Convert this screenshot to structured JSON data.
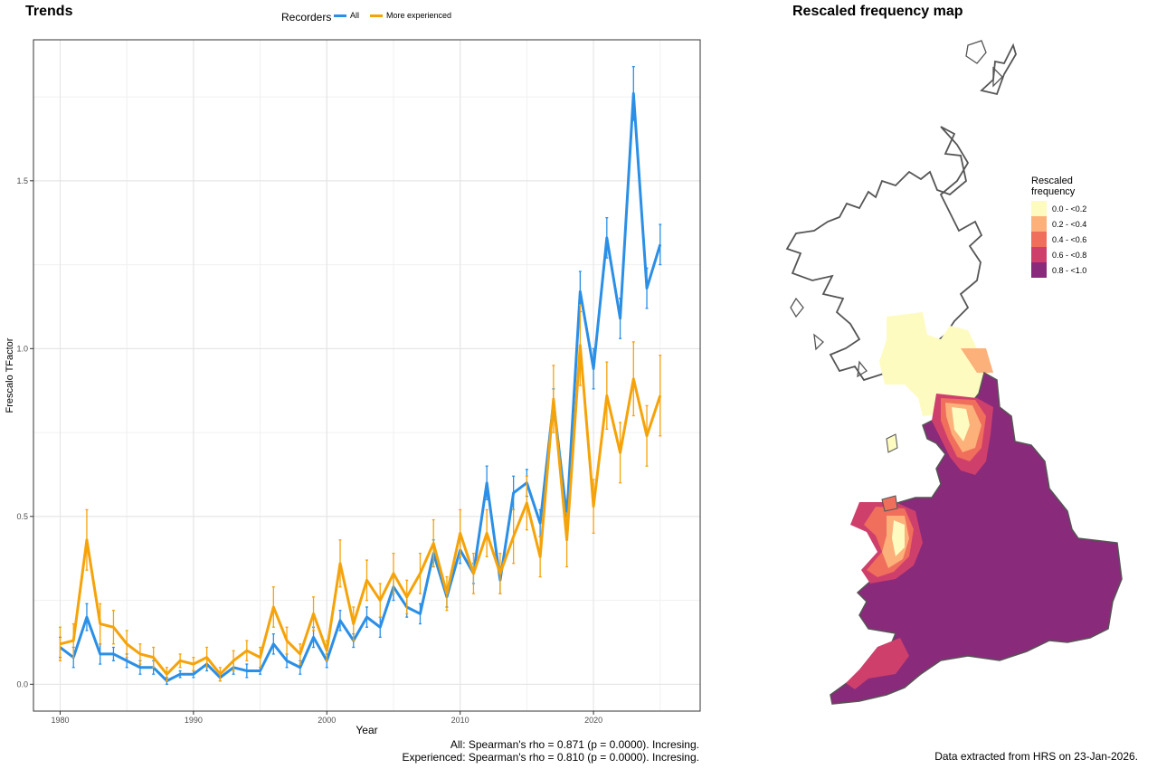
{
  "trends": {
    "title": "Trends",
    "legend_title": "Recorders",
    "stat_all": "All: Spearman's rho = 0.871 (p = 0.0000). Incresing.",
    "stat_experienced": "Experienced: Spearman's rho = 0.810 (p = 0.0000). Incresing."
  },
  "map": {
    "title": "Rescaled frequency map",
    "legend_title_line1": "Rescaled",
    "legend_title_line2": "frequency",
    "legend": [
      {
        "label": "0.0 - <0.2",
        "color": "#fdfbc0"
      },
      {
        "label": "0.2 - <0.4",
        "color": "#fcb07a"
      },
      {
        "label": "0.4 - <0.6",
        "color": "#f06e5c"
      },
      {
        "label": "0.6 - <0.8",
        "color": "#cf3f6c"
      },
      {
        "label": "0.8 - <1.0",
        "color": "#8a2a7a"
      }
    ],
    "note": "Data extracted from HRS on 23-Jan-2026."
  },
  "chart_data": {
    "type": "line",
    "title": "Trends",
    "xlabel": "Year",
    "ylabel": "Frescalo TFactor",
    "xlim": [
      1978,
      2028
    ],
    "ylim": [
      -0.08,
      1.92
    ],
    "x_ticks": [
      1980,
      1990,
      2000,
      2010,
      2020
    ],
    "y_ticks": [
      0.0,
      0.5,
      1.0,
      1.5
    ],
    "y_tick_labels": [
      "0.0",
      "0.5",
      "1.0",
      "1.5"
    ],
    "grid": true,
    "legend_position": "top",
    "x": [
      1980,
      1981,
      1982,
      1983,
      1984,
      1985,
      1986,
      1987,
      1988,
      1989,
      1990,
      1991,
      1992,
      1993,
      1994,
      1995,
      1996,
      1997,
      1998,
      1999,
      2000,
      2001,
      2002,
      2003,
      2004,
      2005,
      2006,
      2007,
      2008,
      2009,
      2010,
      2011,
      2012,
      2013,
      2014,
      2015,
      2016,
      2017,
      2018,
      2019,
      2020,
      2021,
      2022,
      2023,
      2024,
      2025
    ],
    "series": [
      {
        "name": "All",
        "color": "#2b8fe6",
        "values": [
          0.11,
          0.08,
          0.2,
          0.09,
          0.09,
          0.07,
          0.05,
          0.05,
          0.01,
          0.03,
          0.03,
          0.06,
          0.02,
          0.05,
          0.04,
          0.04,
          0.12,
          0.07,
          0.05,
          0.14,
          0.07,
          0.19,
          0.13,
          0.2,
          0.17,
          0.29,
          0.23,
          0.21,
          0.39,
          0.26,
          0.4,
          0.33,
          0.6,
          0.31,
          0.57,
          0.6,
          0.48,
          0.84,
          0.5,
          1.17,
          0.94,
          1.33,
          1.09,
          1.76,
          1.18,
          1.31
        ],
        "err": [
          0.03,
          0.03,
          0.04,
          0.03,
          0.02,
          0.02,
          0.02,
          0.02,
          0.01,
          0.01,
          0.01,
          0.02,
          0.01,
          0.02,
          0.02,
          0.01,
          0.03,
          0.02,
          0.02,
          0.03,
          0.02,
          0.03,
          0.02,
          0.03,
          0.03,
          0.04,
          0.03,
          0.03,
          0.04,
          0.03,
          0.04,
          0.03,
          0.05,
          0.04,
          0.05,
          0.04,
          0.04,
          0.04,
          0.04,
          0.06,
          0.06,
          0.06,
          0.06,
          0.08,
          0.06,
          0.06
        ]
      },
      {
        "name": "More experienced",
        "color": "#f5a30a",
        "values": [
          0.12,
          0.13,
          0.43,
          0.18,
          0.17,
          0.12,
          0.09,
          0.08,
          0.03,
          0.07,
          0.06,
          0.08,
          0.03,
          0.07,
          0.1,
          0.08,
          0.23,
          0.13,
          0.09,
          0.21,
          0.1,
          0.36,
          0.18,
          0.31,
          0.25,
          0.33,
          0.26,
          0.33,
          0.42,
          0.27,
          0.45,
          0.33,
          0.45,
          0.33,
          0.44,
          0.54,
          0.38,
          0.85,
          0.43,
          1.01,
          0.53,
          0.86,
          0.69,
          0.91,
          0.74,
          0.86
        ],
        "err": [
          0.05,
          0.05,
          0.09,
          0.06,
          0.05,
          0.04,
          0.03,
          0.03,
          0.02,
          0.02,
          0.02,
          0.03,
          0.02,
          0.03,
          0.03,
          0.03,
          0.06,
          0.04,
          0.03,
          0.05,
          0.03,
          0.07,
          0.05,
          0.06,
          0.05,
          0.06,
          0.05,
          0.06,
          0.07,
          0.05,
          0.07,
          0.06,
          0.07,
          0.06,
          0.08,
          0.08,
          0.06,
          0.1,
          0.08,
          0.12,
          0.08,
          0.1,
          0.09,
          0.11,
          0.09,
          0.12
        ]
      }
    ]
  }
}
